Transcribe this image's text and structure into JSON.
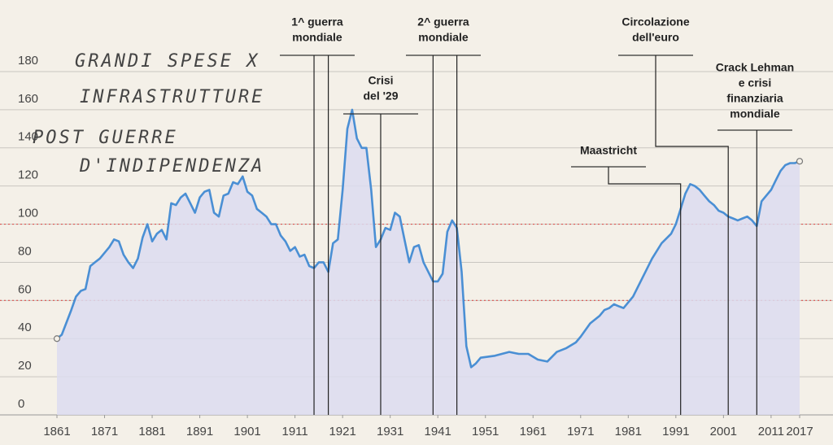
{
  "chart_data": {
    "type": "line",
    "x": [
      1861,
      1862,
      1864,
      1865,
      1866,
      1867,
      1868,
      1869,
      1870,
      1872,
      1873,
      1874,
      1875,
      1876,
      1877,
      1878,
      1879,
      1880,
      1881,
      1882,
      1883,
      1884,
      1885,
      1886,
      1887,
      1888,
      1889,
      1890,
      1891,
      1892,
      1893,
      1894,
      1895,
      1896,
      1897,
      1898,
      1899,
      1900,
      1901,
      1902,
      1903,
      1904,
      1905,
      1906,
      1907,
      1908,
      1909,
      1910,
      1911,
      1912,
      1913,
      1914,
      1915,
      1916,
      1917,
      1918,
      1919,
      1920,
      1921,
      1922,
      1923,
      1924,
      1925,
      1926,
      1927,
      1928,
      1929,
      1930,
      1931,
      1932,
      1933,
      1934,
      1935,
      1936,
      1937,
      1938,
      1939,
      1940,
      1941,
      1942,
      1943,
      1944,
      1945,
      1946,
      1947,
      1948,
      1949,
      1950,
      1953,
      1956,
      1958,
      1960,
      1962,
      1964,
      1966,
      1968,
      1970,
      1971,
      1973,
      1975,
      1976,
      1977,
      1978,
      1979,
      1980,
      1982,
      1984,
      1986,
      1988,
      1990,
      1991,
      1992,
      1993,
      1994,
      1995,
      1996,
      1997,
      1998,
      1999,
      2000,
      2001,
      2002,
      2003,
      2004,
      2005,
      2006,
      2007,
      2008,
      2009,
      2010,
      2011,
      2012,
      2013,
      2014,
      2015,
      2016,
      2017
    ],
    "values": [
      40,
      42,
      55,
      62,
      65,
      66,
      78,
      80,
      82,
      88,
      92,
      91,
      84,
      80,
      77,
      82,
      93,
      100,
      91,
      95,
      97,
      92,
      111,
      110,
      114,
      116,
      111,
      106,
      114,
      117,
      118,
      106,
      104,
      115,
      116,
      122,
      121,
      125,
      117,
      115,
      108,
      106,
      104,
      100,
      100,
      94,
      91,
      86,
      88,
      83,
      84,
      78,
      77,
      80,
      80,
      75,
      90,
      92,
      118,
      150,
      160,
      145,
      140,
      140,
      118,
      88,
      92,
      98,
      97,
      106,
      104,
      92,
      80,
      88,
      89,
      80,
      75,
      70,
      70,
      74,
      96,
      102,
      98,
      75,
      36,
      25,
      27,
      30,
      31,
      33,
      32,
      32,
      29,
      28,
      33,
      35,
      38,
      41,
      48,
      52,
      55,
      56,
      58,
      57,
      56,
      62,
      72,
      82,
      90,
      95,
      100,
      108,
      116,
      121,
      120,
      118,
      115,
      112,
      110,
      107,
      106,
      104,
      103,
      102,
      103,
      104,
      102,
      99,
      112,
      115,
      118,
      123,
      128,
      131,
      132,
      132,
      133
    ],
    "color": "#4a8fd4",
    "fill_color": "#dcdcf0",
    "xlim": [
      1861,
      2017
    ],
    "xticks": [
      1861,
      1871,
      1881,
      1891,
      1901,
      1911,
      1921,
      1931,
      1941,
      1951,
      1961,
      1971,
      1981,
      1991,
      2001,
      2011,
      2017
    ],
    "ylim": [
      0,
      180
    ],
    "yticks": [
      0,
      20,
      40,
      60,
      80,
      100,
      120,
      140,
      160,
      180
    ],
    "grid": true,
    "reference_lines": [
      60,
      100
    ],
    "reference_color": "#d9534f",
    "annotations": [
      {
        "label": [
          "1^ guerra",
          "mondiale"
        ],
        "years": [
          1915,
          1918
        ]
      },
      {
        "label": [
          "Crisi",
          "del '29"
        ],
        "years": [
          1929
        ]
      },
      {
        "label": [
          "2^ guerra",
          "mondiale"
        ],
        "years": [
          1940,
          1945
        ]
      },
      {
        "label": [
          "Maastricht"
        ],
        "years": [
          1992
        ]
      },
      {
        "label": [
          "Circolazione",
          "dell'euro"
        ],
        "years": [
          2002
        ]
      },
      {
        "label": [
          "Crack Lehman",
          "e crisi",
          "finanziaria",
          "mondiale"
        ],
        "years": [
          2008
        ]
      }
    ],
    "notes": [
      "GRANDI SPESE X",
      "INFRASTRUTTURE",
      "POST GUERRE",
      "D'INDIPENDENZA"
    ]
  }
}
